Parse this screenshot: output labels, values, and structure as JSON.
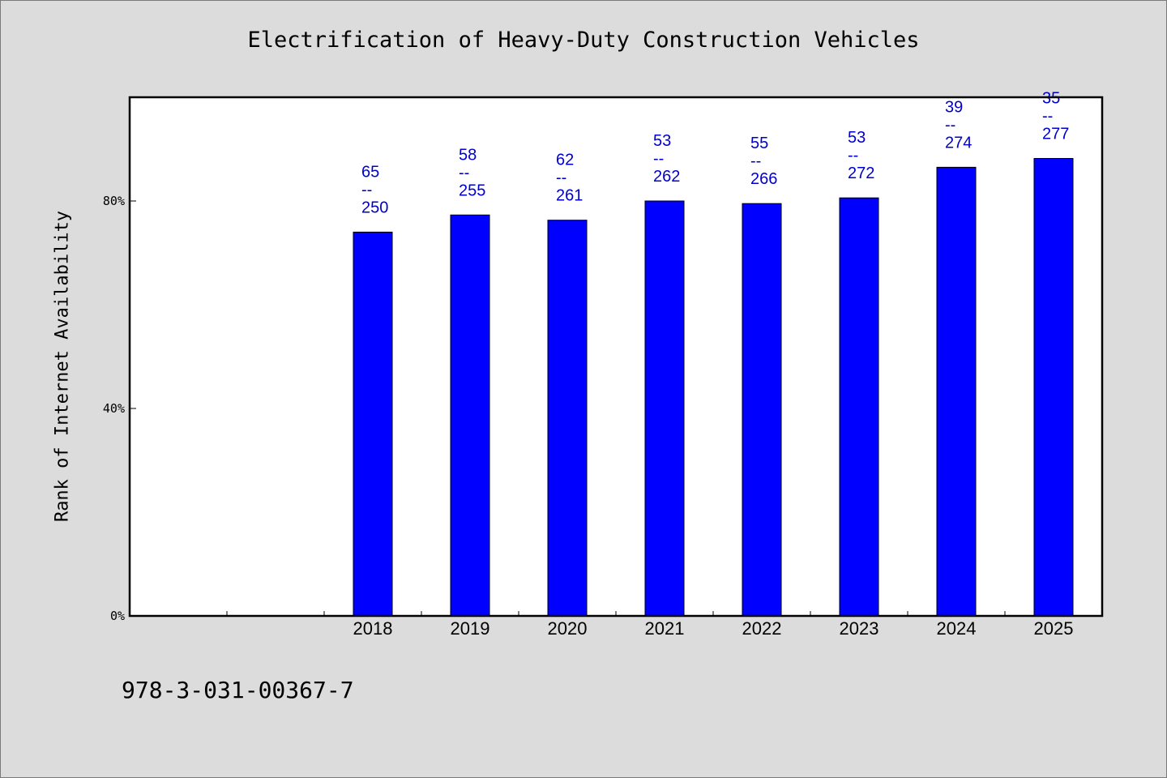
{
  "chart_data": {
    "type": "bar",
    "title": "Electrification of Heavy-Duty Construction Vehicles",
    "xlabel": "",
    "ylabel": "Rank of Internet Availability",
    "categories": [
      "",
      "",
      "2018",
      "2019",
      "2020",
      "2021",
      "2022",
      "2023",
      "2024",
      "2025"
    ],
    "values": [
      null,
      null,
      74,
      77.3,
      76.3,
      80,
      79.5,
      80.6,
      86.5,
      88.2
    ],
    "data_labels": [
      null,
      null,
      {
        "top": "65",
        "sep": "--",
        "bottom": "250"
      },
      {
        "top": "58",
        "sep": "--",
        "bottom": "255"
      },
      {
        "top": "62",
        "sep": "--",
        "bottom": "261"
      },
      {
        "top": "53",
        "sep": "--",
        "bottom": "262"
      },
      {
        "top": "55",
        "sep": "--",
        "bottom": "266"
      },
      {
        "top": "53",
        "sep": "--",
        "bottom": "272"
      },
      {
        "top": "39",
        "sep": "--",
        "bottom": "274"
      },
      {
        "top": "35",
        "sep": "--",
        "bottom": "277"
      }
    ],
    "ylim": [
      0,
      100
    ],
    "yticks": [
      0,
      40,
      80
    ],
    "ytick_labels": [
      "0%",
      "40%",
      "80%"
    ],
    "grid": false,
    "legend": "none",
    "colors": {
      "bar": "#0000ff",
      "bar_edge": "#000000",
      "data_label": "#0000cc",
      "plot_bg": "#ffffff",
      "figure_bg": "#dcdcdc"
    }
  },
  "footer": {
    "isbn": "978-3-031-00367-7"
  }
}
